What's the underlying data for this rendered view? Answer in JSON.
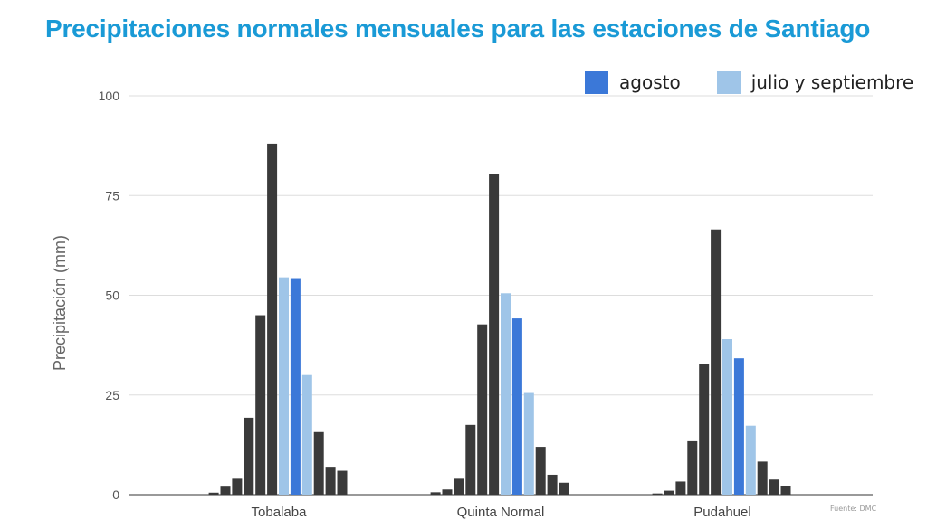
{
  "title": "Precipitaciones normales mensuales para las estaciones de Santiago",
  "source": "Fuente: DMC",
  "legend": [
    {
      "label": "agosto",
      "color": "#3b78d8"
    },
    {
      "label": "julio y septiembre",
      "color": "#9fc5e8"
    }
  ],
  "chart_data": {
    "type": "bar",
    "title": "Precipitaciones normales mensuales para las estaciones de Santiago",
    "xlabel": "",
    "ylabel": "Precipitación (mm)",
    "ylim": [
      0,
      100
    ],
    "yticks": [
      0,
      25,
      50,
      75,
      100
    ],
    "grid": true,
    "legend_position": "top-right",
    "colors": {
      "default": "#3a3a3a",
      "agosto": "#3b78d8",
      "julio y septiembre": "#9fc5e8"
    },
    "categories": [
      "Tobalaba",
      "Quinta Normal",
      "Pudahuel"
    ],
    "series_per_category": [
      [
        0.5,
        2,
        4,
        19.3,
        45,
        88,
        54.5,
        54.3,
        30,
        15.7,
        7,
        6
      ],
      [
        0.6,
        1.3,
        4,
        17.5,
        42.7,
        80.5,
        50.5,
        44.2,
        25.5,
        12,
        5,
        3
      ],
      [
        0.3,
        1,
        3.3,
        13.4,
        32.7,
        66.5,
        39,
        34.2,
        17.3,
        8.3,
        3.8,
        2.2
      ]
    ],
    "bar_color_keys": [
      "default",
      "default",
      "default",
      "default",
      "default",
      "default",
      "julio y septiembre",
      "agosto",
      "julio y septiembre",
      "default",
      "default",
      "default"
    ]
  }
}
